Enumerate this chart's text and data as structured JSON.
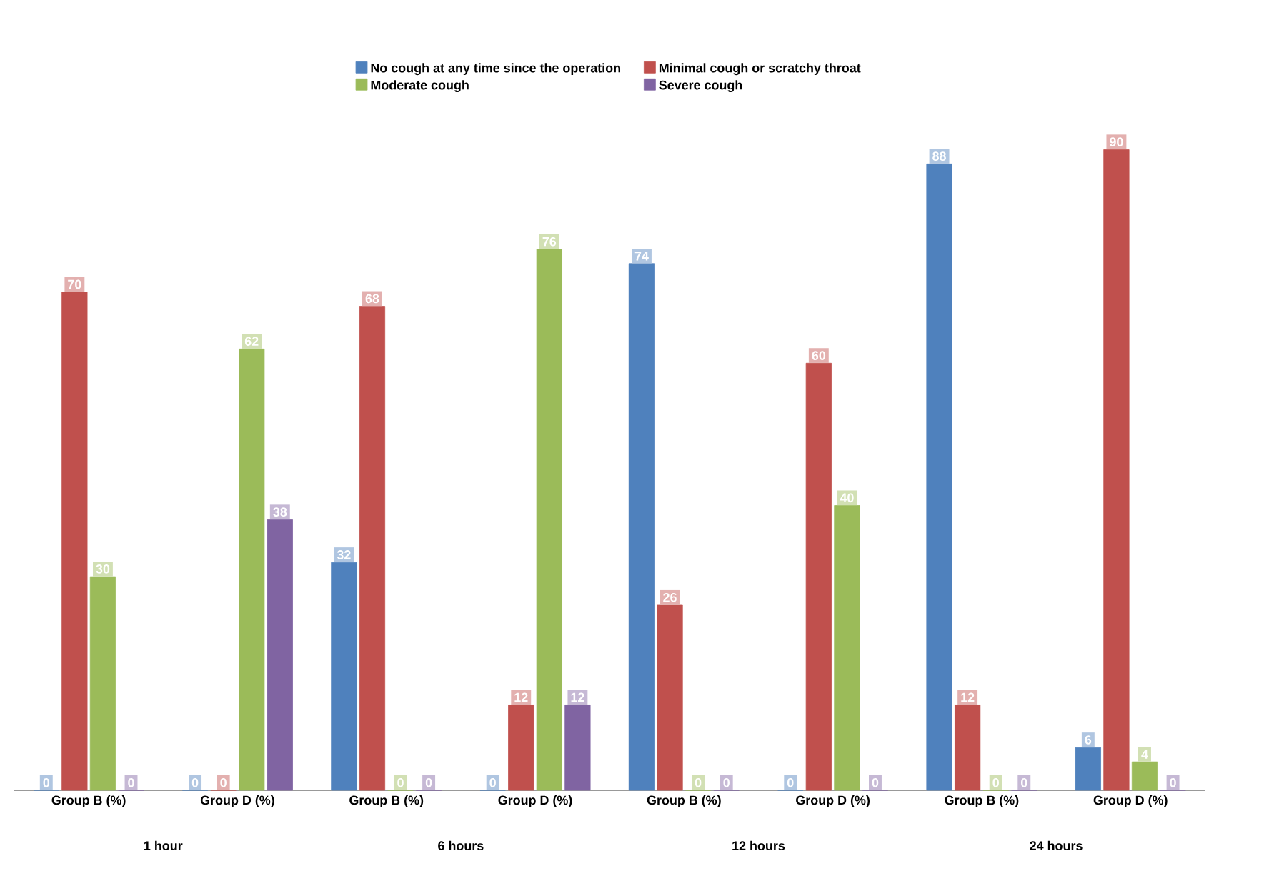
{
  "chart_data": {
    "type": "bar",
    "categories": [
      "Group B (%)",
      "Group D (%)",
      "Group B (%)",
      "Group D (%)",
      "Group B (%)",
      "Group D (%)",
      "Group B (%)",
      "Group D (%)"
    ],
    "annotations": [
      "1 hour",
      "6 hours",
      "12 hours",
      "24 hours"
    ],
    "series": [
      {
        "name": "No cough at any time since the operation",
        "color": "#4f81bd",
        "values": [
          0,
          0,
          32,
          0,
          74,
          0,
          88,
          6
        ]
      },
      {
        "name": "Minimal cough or scratchy throat",
        "color": "#c0504d",
        "values": [
          70,
          0,
          68,
          12,
          26,
          60,
          12,
          90
        ]
      },
      {
        "name": "Moderate cough",
        "color": "#9bbb59",
        "values": [
          30,
          62,
          0,
          76,
          0,
          40,
          0,
          4
        ]
      },
      {
        "name": "Severe cough",
        "color": "#8064a2",
        "values": [
          0,
          38,
          0,
          12,
          0,
          0,
          0,
          0
        ]
      }
    ],
    "data_labels": true,
    "legend": "top"
  }
}
